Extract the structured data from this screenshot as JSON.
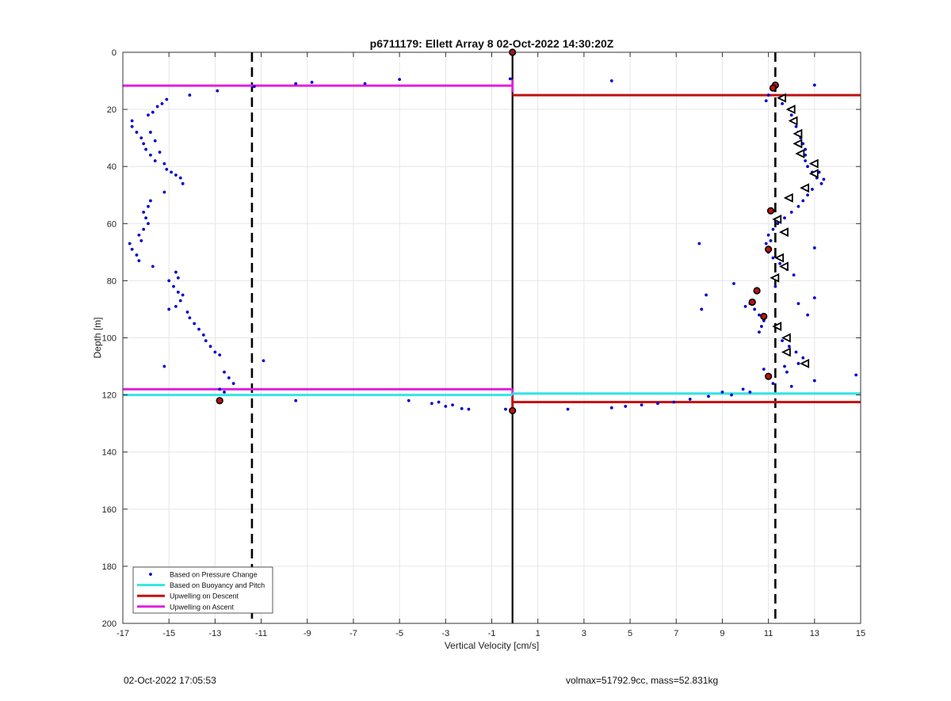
{
  "chart_data": {
    "type": "scatter",
    "title": "p6711179: Ellett Array 8 02-Oct-2022 14:30:20Z",
    "xlabel": "Vertical Velocity [cm/s]",
    "ylabel": "Depth [m]",
    "xlim": [
      -17,
      15
    ],
    "ylim": [
      0,
      200
    ],
    "y_reversed": true,
    "grid": true,
    "x_ticks": [
      -17,
      -15,
      -13,
      -11,
      -9,
      -7,
      -5,
      -3,
      -1,
      1,
      3,
      5,
      7,
      9,
      11,
      13,
      15
    ],
    "y_ticks": [
      0,
      20,
      40,
      60,
      80,
      100,
      120,
      140,
      160,
      180,
      200
    ],
    "legend_position": "bottom-left",
    "colors": {
      "pressure": "#0000cc",
      "buoyancy": "#33e6e6",
      "descent": "#c01010",
      "ascent": "#e020e0",
      "reference": "#000000",
      "grid": "#e6e6e6"
    },
    "series": [
      {
        "name": "Based on Pressure Change",
        "style": "dots",
        "points": [
          [
            -16.6,
            24
          ],
          [
            -16.6,
            26
          ],
          [
            -16.4,
            28
          ],
          [
            -16.2,
            30
          ],
          [
            -16.1,
            32
          ],
          [
            -16.0,
            34
          ],
          [
            -15.8,
            36
          ],
          [
            -15.6,
            38
          ],
          [
            -15.9,
            22
          ],
          [
            -15.7,
            21
          ],
          [
            -15.5,
            19
          ],
          [
            -15.3,
            18
          ],
          [
            -15.1,
            16.5
          ],
          [
            -14.1,
            15
          ],
          [
            -12.9,
            13.5
          ],
          [
            -15.8,
            28
          ],
          [
            -15.6,
            31
          ],
          [
            -15.4,
            35
          ],
          [
            -15.2,
            39
          ],
          [
            -15.1,
            41
          ],
          [
            -14.9,
            42
          ],
          [
            -14.7,
            43
          ],
          [
            -14.5,
            44
          ],
          [
            -14.4,
            46
          ],
          [
            -15.2,
            49
          ],
          [
            -15.8,
            52
          ],
          [
            -15.9,
            54
          ],
          [
            -16.1,
            56
          ],
          [
            -16.0,
            58
          ],
          [
            -15.9,
            60
          ],
          [
            -16.1,
            62
          ],
          [
            -16.3,
            64
          ],
          [
            -16.2,
            66
          ],
          [
            -16.7,
            67
          ],
          [
            -16.6,
            69
          ],
          [
            -16.4,
            71
          ],
          [
            -16.3,
            73
          ],
          [
            -15.7,
            75
          ],
          [
            -14.7,
            77
          ],
          [
            -14.6,
            79
          ],
          [
            -15.0,
            80
          ],
          [
            -14.8,
            82
          ],
          [
            -14.6,
            84
          ],
          [
            -14.4,
            85
          ],
          [
            -14.5,
            87
          ],
          [
            -14.7,
            89
          ],
          [
            -15.0,
            90
          ],
          [
            -14.2,
            91
          ],
          [
            -14.1,
            93
          ],
          [
            -13.9,
            95
          ],
          [
            -13.7,
            97
          ],
          [
            -13.5,
            99
          ],
          [
            -13.4,
            101
          ],
          [
            -13.2,
            103
          ],
          [
            -13.0,
            105
          ],
          [
            -12.8,
            106
          ],
          [
            -15.2,
            110
          ],
          [
            -12.6,
            112
          ],
          [
            -12.4,
            114
          ],
          [
            -12.2,
            116
          ],
          [
            -12.8,
            118
          ],
          [
            -12.6,
            119
          ],
          [
            -10.9,
            108
          ],
          [
            -11.3,
            12
          ],
          [
            -9.5,
            11
          ],
          [
            -8.8,
            10.5
          ],
          [
            -6.5,
            11
          ],
          [
            -5.0,
            9.5
          ],
          [
            -0.2,
            9.3
          ],
          [
            -9.5,
            122
          ],
          [
            -4.6,
            122
          ],
          [
            -3.6,
            123
          ],
          [
            -3.3,
            122.5
          ],
          [
            -3.0,
            124
          ],
          [
            -2.7,
            123.5
          ],
          [
            -2.3,
            124.8
          ],
          [
            -2.0,
            125
          ],
          [
            -0.4,
            125
          ],
          [
            2.3,
            125
          ],
          [
            4.2,
            124.5
          ],
          [
            4.8,
            124
          ],
          [
            5.5,
            123.5
          ],
          [
            6.2,
            123
          ],
          [
            6.9,
            122.5
          ],
          [
            7.6,
            121.5
          ],
          [
            8.4,
            120.5
          ],
          [
            9.0,
            119
          ],
          [
            9.4,
            120
          ],
          [
            9.9,
            118
          ],
          [
            10.2,
            119
          ],
          [
            4.2,
            10
          ],
          [
            13.0,
            11.5
          ],
          [
            10.9,
            17
          ],
          [
            11.0,
            15
          ],
          [
            11.6,
            18
          ],
          [
            11.9,
            20
          ],
          [
            12.0,
            22
          ],
          [
            12.1,
            24
          ],
          [
            12.2,
            26
          ],
          [
            12.3,
            28
          ],
          [
            12.4,
            30
          ],
          [
            12.5,
            32
          ],
          [
            12.6,
            34
          ],
          [
            12.6,
            36
          ],
          [
            12.6,
            38
          ],
          [
            12.7,
            40
          ],
          [
            12.9,
            42
          ],
          [
            13.1,
            44
          ],
          [
            13.3,
            46
          ],
          [
            13.4,
            44.5
          ],
          [
            13.2,
            42
          ],
          [
            12.9,
            48
          ],
          [
            12.7,
            50
          ],
          [
            12.5,
            52
          ],
          [
            12.3,
            54
          ],
          [
            12.0,
            56
          ],
          [
            11.7,
            58
          ],
          [
            11.4,
            60
          ],
          [
            11.2,
            62
          ],
          [
            11.0,
            64
          ],
          [
            11.1,
            66
          ],
          [
            10.9,
            67
          ],
          [
            11.0,
            70
          ],
          [
            11.2,
            72
          ],
          [
            11.5,
            74
          ],
          [
            11.8,
            76
          ],
          [
            12.1,
            78
          ],
          [
            11.3,
            82
          ],
          [
            10.5,
            84
          ],
          [
            10.2,
            88
          ],
          [
            10.0,
            89
          ],
          [
            10.4,
            90
          ],
          [
            10.6,
            92
          ],
          [
            10.8,
            94
          ],
          [
            10.7,
            96
          ],
          [
            10.6,
            98
          ],
          [
            11.6,
            101
          ],
          [
            11.9,
            103
          ],
          [
            12.2,
            105
          ],
          [
            12.5,
            107
          ],
          [
            12.3,
            109
          ],
          [
            11.7,
            110
          ],
          [
            10.8,
            111
          ],
          [
            11.8,
            112
          ],
          [
            13.0,
            115
          ],
          [
            14.8,
            113
          ],
          [
            11.2,
            116
          ],
          [
            12.0,
            117
          ],
          [
            13.0,
            68.5
          ],
          [
            13.0,
            86
          ],
          [
            12.3,
            88
          ],
          [
            12.7,
            92
          ],
          [
            8.0,
            67
          ],
          [
            8.3,
            85
          ],
          [
            8.1,
            90
          ],
          [
            9.5,
            81
          ]
        ]
      },
      {
        "name": "Based on Buoyancy and Pitch",
        "style": "line",
        "segments": [
          [
            [
              -17,
              120
            ],
            [
              -0.1,
              120
            ]
          ],
          [
            [
              -0.1,
              119.5
            ],
            [
              15,
              119.5
            ]
          ]
        ]
      },
      {
        "name": "Upwelling on Descent",
        "style": "line",
        "segments": [
          [
            [
              -0.1,
              15
            ],
            [
              15,
              15
            ]
          ],
          [
            [
              -0.1,
              122.5
            ],
            [
              15,
              122.5
            ]
          ]
        ]
      },
      {
        "name": "Upwelling on Ascent",
        "style": "line",
        "segments": [
          [
            [
              -17,
              11.7
            ],
            [
              -0.1,
              11.7
            ]
          ],
          [
            [
              -17,
              118
            ],
            [
              -0.1,
              118
            ]
          ]
        ]
      }
    ],
    "reference_lines": {
      "vertical_solid_x": -0.1,
      "vertical_solid_range": [
        0,
        200
      ],
      "vertical_dashed_x": [
        -11.4,
        11.3
      ],
      "magenta_vertical_x": -0.1,
      "magenta_vertical_ranges": [
        [
          9.5,
          14
        ],
        [
          118,
          120
        ]
      ],
      "red_vertical_x": -0.1,
      "red_vertical_ranges": [
        [
          120,
          126
        ]
      ]
    },
    "red_markers": [
      [
        -0.1,
        0
      ],
      [
        11.3,
        11.5
      ],
      [
        11.2,
        12.5
      ],
      [
        11.1,
        55.5
      ],
      [
        11.0,
        69
      ],
      [
        10.5,
        83.5
      ],
      [
        10.3,
        87.5
      ],
      [
        10.8,
        92.5
      ],
      [
        11.0,
        113.5
      ],
      [
        -12.8,
        122
      ],
      [
        -0.1,
        125.5
      ]
    ],
    "triangle_markers": [
      [
        11.6,
        16
      ],
      [
        12.0,
        20
      ],
      [
        12.1,
        24
      ],
      [
        12.3,
        28.5
      ],
      [
        12.3,
        32
      ],
      [
        12.4,
        35.5
      ],
      [
        13.0,
        39
      ],
      [
        13.0,
        42.5
      ],
      [
        12.6,
        47.5
      ],
      [
        11.9,
        51
      ],
      [
        11.4,
        58.5
      ],
      [
        11.7,
        63
      ],
      [
        11.5,
        72
      ],
      [
        11.7,
        75
      ],
      [
        11.3,
        79
      ],
      [
        11.4,
        96
      ],
      [
        11.8,
        100
      ],
      [
        11.8,
        105
      ],
      [
        12.6,
        109
      ]
    ]
  },
  "footer": {
    "timestamp": "02-Oct-2022 17:05:53",
    "stats": "volmax=51792.9cc, mass=52.831kg"
  }
}
